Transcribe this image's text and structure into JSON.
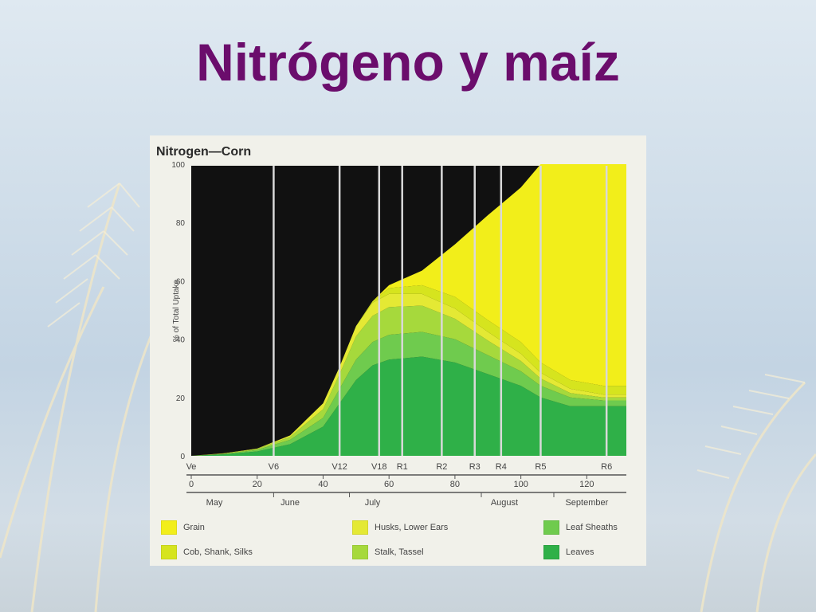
{
  "slide": {
    "title": "Nitrógeno y maíz"
  },
  "colors": {
    "title": "#6b0d6c",
    "plot_bg": "#111111",
    "grain": "#f2ee1a",
    "cob": "#d6e41e",
    "husks": "#e4e934",
    "stalk": "#a6d93c",
    "sheaths": "#6fcb4e",
    "leaves": "#2fb048",
    "stage_line": "#d9d9d9"
  },
  "chart_data": {
    "type": "area",
    "title": "Nitrogen—Corn",
    "ylabel": "% of Total Uptake",
    "xlabel": "",
    "xlim": [
      0,
      132
    ],
    "ylim": [
      0,
      100
    ],
    "yticks": [
      "0",
      "20",
      "40",
      "60",
      "80",
      "100"
    ],
    "xticks": [
      "0",
      "20",
      "40",
      "60",
      "80",
      "100",
      "120"
    ],
    "stages": [
      {
        "label": "Ve",
        "x": 0
      },
      {
        "label": "V6",
        "x": 25
      },
      {
        "label": "V12",
        "x": 45
      },
      {
        "label": "V18",
        "x": 57
      },
      {
        "label": "R1",
        "x": 64
      },
      {
        "label": "R2",
        "x": 76
      },
      {
        "label": "R3",
        "x": 86
      },
      {
        "label": "R4",
        "x": 94
      },
      {
        "label": "R5",
        "x": 106
      },
      {
        "label": "R6",
        "x": 126
      }
    ],
    "months": [
      "May",
      "June",
      "July",
      "August",
      "September"
    ],
    "legend": {
      "grain": "Grain",
      "cob": "Cob, Shank, Silks",
      "husks": "Husks, Lower Ears",
      "stalk": "Stalk, Tassel",
      "sheaths": "Leaf Sheaths",
      "leaves": "Leaves"
    },
    "x": [
      0,
      10,
      20,
      30,
      40,
      45,
      50,
      55,
      60,
      70,
      80,
      90,
      100,
      106,
      115,
      125,
      132
    ],
    "series": [
      {
        "key": "leaves",
        "name": "Leaves",
        "values": [
          0,
          0.5,
          1.5,
          4,
          10,
          18,
          26,
          31,
          33,
          34,
          32,
          28,
          24,
          20,
          17,
          17,
          17
        ]
      },
      {
        "key": "sheaths",
        "name": "Leaf Sheaths",
        "values": [
          0,
          0.2,
          0.5,
          1.5,
          3,
          5,
          7,
          8,
          8.5,
          8.5,
          8,
          6.5,
          5,
          4,
          3,
          2,
          2
        ]
      },
      {
        "key": "stalk",
        "name": "Stalk, Tassel",
        "values": [
          0,
          0.1,
          0.4,
          1,
          3,
          5,
          8,
          9,
          9.5,
          9,
          7,
          5,
          3.5,
          2.5,
          1.5,
          1,
          1
        ]
      },
      {
        "key": "husks",
        "name": "Husks, Lower Ears",
        "values": [
          0,
          0.1,
          0.1,
          0.5,
          2,
          2.5,
          3.5,
          4.5,
          4.5,
          4,
          3.5,
          3,
          2.5,
          2,
          1.5,
          1,
          1
        ]
      },
      {
        "key": "cob",
        "name": "Cob, Shank, Silks",
        "values": [
          0,
          0,
          0,
          0,
          0,
          0,
          0,
          0.5,
          2,
          3,
          4,
          4,
          4,
          3.5,
          3,
          3,
          3
        ]
      },
      {
        "key": "grain",
        "name": "Grain",
        "values": [
          0,
          0,
          0,
          0,
          0,
          0,
          0,
          0,
          1,
          5,
          18,
          36,
          53,
          68,
          74,
          76,
          76
        ]
      }
    ]
  }
}
